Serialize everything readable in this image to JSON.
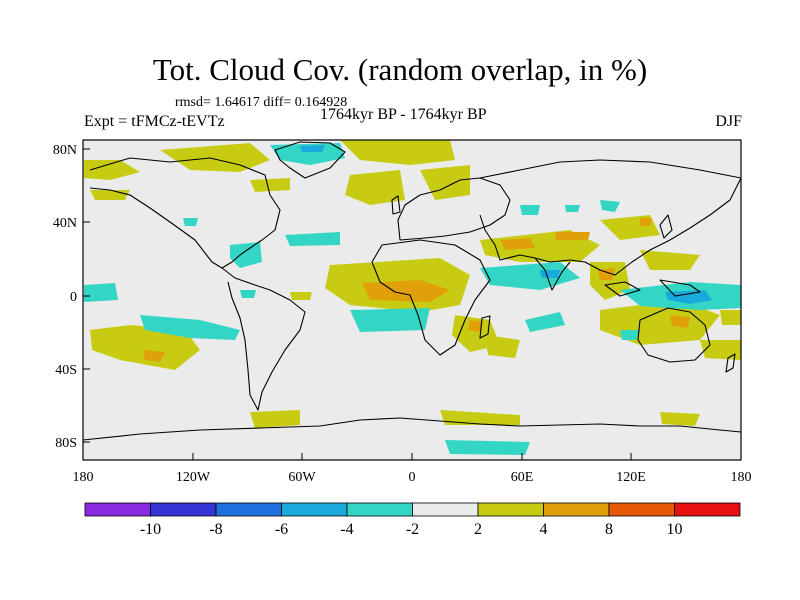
{
  "title": "Tot. Cloud Cov. (random overlap, in %)",
  "stats": "rmsd= 1.64617  diff= 0.164928",
  "experiment": "Expt = tFMCz-tEVTz",
  "period": "1764kyr BP - 1764kyr BP",
  "season": "DJF",
  "axes": {
    "lon_ticks": [
      "180",
      "120W",
      "60W",
      "0",
      "60E",
      "120E",
      "180"
    ],
    "lat_ticks": [
      "80N",
      "40N",
      "0",
      "40S",
      "80S"
    ]
  },
  "colorbar": {
    "labels": [
      "-10",
      "-8",
      "-6",
      "-4",
      "-2",
      "2",
      "4",
      "8",
      "10"
    ],
    "colors": [
      "#8a2be2",
      "#3535d6",
      "#1e6fe0",
      "#1aa9dd",
      "#33d6c4",
      "#ebebeb",
      "#c7cc12",
      "#e0a00a",
      "#e65a06",
      "#e61010"
    ]
  },
  "colors": {
    "land_outline": "#000000",
    "background": "#ebebeb"
  }
}
